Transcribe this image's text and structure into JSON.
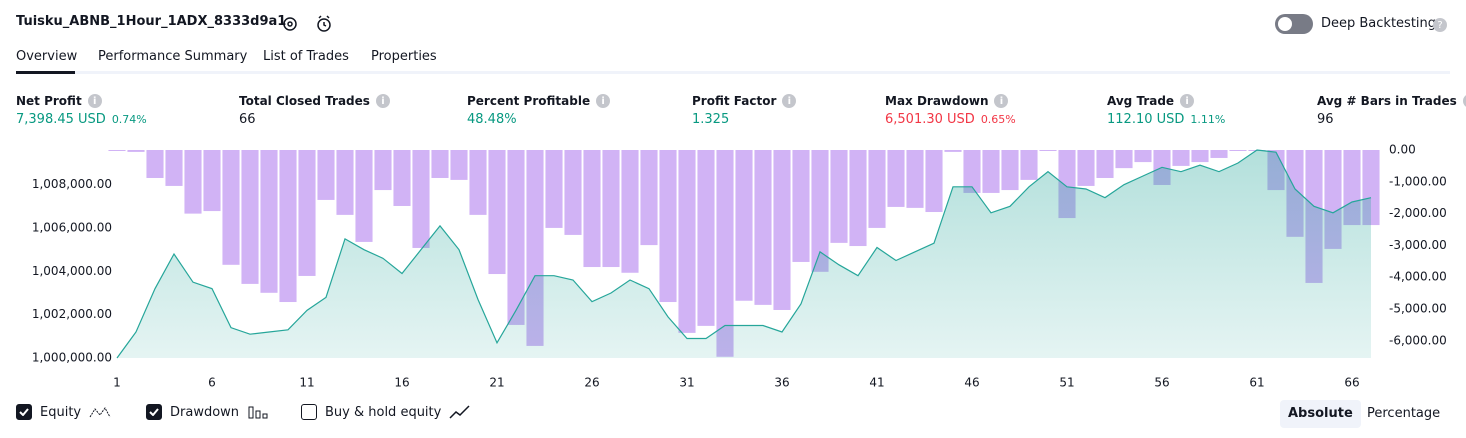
{
  "header": {
    "title": "Tuisku_ABNB_1Hour_1ADX_8333d9a1",
    "toggle_label": "Deep Backtesting"
  },
  "tabs": [
    "Overview",
    "Performance Summary",
    "List of Trades",
    "Properties"
  ],
  "metrics": [
    {
      "label": "Net Profit",
      "value": "7,398.45 USD",
      "percent": "0.74%"
    },
    {
      "label": "Total Closed Trades",
      "value": "66"
    },
    {
      "label": "Percent Profitable",
      "value": "48.48%"
    },
    {
      "label": "Profit Factor",
      "value": "1.325"
    },
    {
      "label": "Max Drawdown",
      "value": "6,501.30 USD",
      "percent": "0.65%"
    },
    {
      "label": "Avg Trade",
      "value": "112.10 USD",
      "percent": "1.11%"
    },
    {
      "label": "Avg # Bars in Trades",
      "value": "96"
    }
  ],
  "chart_data": {
    "type": "equity-drawdown",
    "x": [
      1,
      2,
      3,
      4,
      5,
      6,
      7,
      8,
      9,
      10,
      11,
      12,
      13,
      14,
      15,
      16,
      17,
      18,
      19,
      20,
      21,
      22,
      23,
      24,
      25,
      26,
      27,
      28,
      29,
      30,
      31,
      32,
      33,
      34,
      35,
      36,
      37,
      38,
      39,
      40,
      41,
      42,
      43,
      44,
      45,
      46,
      47,
      48,
      49,
      50,
      51,
      52,
      53,
      54,
      55,
      56,
      57,
      58,
      59,
      60,
      61,
      62,
      63,
      64,
      65,
      66,
      67
    ],
    "xlim": [
      0.5,
      67.5
    ],
    "xticks": [
      1,
      6,
      11,
      16,
      21,
      26,
      31,
      36,
      41,
      46,
      51,
      56,
      61,
      66
    ],
    "ylim": [
      1000000,
      1009600
    ],
    "yticks": [
      {
        "value": 1000000,
        "label": "1,000,000.00"
      },
      {
        "value": 1002000,
        "label": "1,002,000.00"
      },
      {
        "value": 1004000,
        "label": "1,004,000.00"
      },
      {
        "value": 1006000,
        "label": "1,006,000.00"
      },
      {
        "value": 1008000,
        "label": "1,008,000.00"
      }
    ],
    "y2lim": [
      -6540,
      0
    ],
    "y2ticks": [
      {
        "value": 0,
        "label": "0.00"
      },
      {
        "value": -1000,
        "label": "-1,000.00"
      },
      {
        "value": -2000,
        "label": "-2,000.00"
      },
      {
        "value": -3000,
        "label": "-3,000.00"
      },
      {
        "value": -4000,
        "label": "-4,000.00"
      },
      {
        "value": -5000,
        "label": "-5,000.00"
      },
      {
        "value": -6000,
        "label": "-6,000.00"
      }
    ],
    "series": [
      {
        "name": "Equity",
        "color": "#26a69a",
        "values": [
          1000000,
          1001200,
          1003200,
          1004800,
          1003500,
          1003200,
          1001400,
          1001100,
          1001200,
          1001300,
          1002200,
          1002800,
          1005500,
          1005000,
          1004600,
          1003900,
          1005000,
          1006100,
          1005000,
          1002700,
          1000700,
          1002200,
          1003800,
          1003800,
          1003600,
          1002600,
          1003000,
          1003600,
          1003200,
          1001900,
          1000900,
          1000900,
          1001500,
          1001500,
          1001500,
          1001200,
          1002500,
          1004900,
          1004300,
          1003800,
          1005100,
          1004500,
          1004900,
          1005300,
          1007900,
          1007900,
          1006700,
          1007000,
          1007900,
          1008600,
          1007900,
          1007800,
          1007400,
          1008000,
          1008400,
          1008800,
          1008600,
          1008900,
          1008600,
          1009000,
          1009600,
          1009500,
          1007800,
          1007000,
          1006700,
          1007200,
          1007400
        ]
      },
      {
        "name": "Drawdown",
        "color": "#d1b3f5",
        "axis": "y2",
        "values": [
          0,
          -60,
          -880,
          -1130,
          -2000,
          -1920,
          -3610,
          -4210,
          -4490,
          -4780,
          -3960,
          -1570,
          -2040,
          -2890,
          -1260,
          -1760,
          -3080,
          -880,
          -940,
          -2040,
          -3900,
          -5500,
          -6160,
          -2450,
          -2670,
          -3680,
          -3680,
          -3860,
          -2990,
          -4780,
          -5750,
          -5530,
          -6501.3,
          -4740,
          -4870,
          -5030,
          -3520,
          -3830,
          -2920,
          -3020,
          -2450,
          -1790,
          -1820,
          -1950,
          -60,
          -1350,
          -1350,
          -1260,
          -940,
          0,
          -2140,
          -1130,
          -880,
          -570,
          -380,
          -1100,
          -500,
          -380,
          -250,
          0,
          0,
          -1260,
          -2730,
          -4180,
          -3110,
          -2360,
          -2360
        ]
      }
    ],
    "extra_legend": "Buy & hold equity"
  },
  "view_buttons": [
    "Absolute",
    "Percentage"
  ]
}
